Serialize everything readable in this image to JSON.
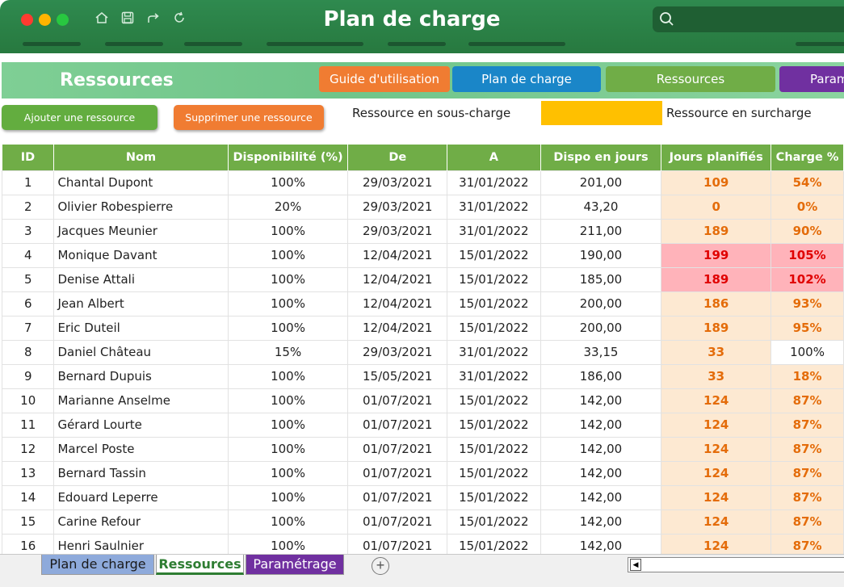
{
  "window": {
    "title": "Plan de charge",
    "colors": {
      "close": "#ff3b30",
      "minimize": "#ffb400",
      "maximize": "#28c840",
      "titlebar": "#2f8a4f"
    }
  },
  "toolbar": {
    "icons": [
      "home-icon",
      "save-icon",
      "share-icon",
      "refresh-icon",
      "search-icon"
    ]
  },
  "header": {
    "title": "Ressources",
    "nav": [
      {
        "label": "Guide d'utilisation",
        "color": "#f07c32"
      },
      {
        "label": "Plan de charge",
        "color": "#1a86c8"
      },
      {
        "label": "Ressources",
        "color": "#70ad47"
      },
      {
        "label": "Param",
        "color": "#7030a0"
      }
    ]
  },
  "actions": {
    "add_label": "Ajouter une ressource",
    "remove_label": "Supprimer une ressource",
    "legend_under": "Ressource en sous-charge",
    "legend_over": "Ressource en surcharge",
    "legend_over_color": "#ffc000"
  },
  "table": {
    "headers": [
      "ID",
      "Nom",
      "Disponibilité (%)",
      "De",
      "A",
      "Dispo en jours",
      "Jours planifiés",
      "Charge %"
    ],
    "rows": [
      {
        "id": "1",
        "nom": "Chantal Dupont",
        "dispo": "100%",
        "de": "29/03/2021",
        "a": "31/01/2022",
        "jours": "201,00",
        "planifies": "109",
        "charge": "54%",
        "status": "normal"
      },
      {
        "id": "2",
        "nom": "Olivier Robespierre",
        "dispo": "20%",
        "de": "29/03/2021",
        "a": "31/01/2022",
        "jours": "43,20",
        "planifies": "0",
        "charge": "0%",
        "status": "normal"
      },
      {
        "id": "3",
        "nom": "Jacques Meunier",
        "dispo": "100%",
        "de": "29/03/2021",
        "a": "31/01/2022",
        "jours": "211,00",
        "planifies": "189",
        "charge": "90%",
        "status": "normal"
      },
      {
        "id": "4",
        "nom": "Monique Davant",
        "dispo": "100%",
        "de": "12/04/2021",
        "a": "15/01/2022",
        "jours": "190,00",
        "planifies": "199",
        "charge": "105%",
        "status": "over"
      },
      {
        "id": "5",
        "nom": "Denise Attali",
        "dispo": "100%",
        "de": "12/04/2021",
        "a": "15/01/2022",
        "jours": "185,00",
        "planifies": "189",
        "charge": "102%",
        "status": "over"
      },
      {
        "id": "6",
        "nom": "Jean Albert",
        "dispo": "100%",
        "de": "12/04/2021",
        "a": "15/01/2022",
        "jours": "200,00",
        "planifies": "186",
        "charge": "93%",
        "status": "normal"
      },
      {
        "id": "7",
        "nom": "Eric Duteil",
        "dispo": "100%",
        "de": "12/04/2021",
        "a": "15/01/2022",
        "jours": "200,00",
        "planifies": "189",
        "charge": "95%",
        "status": "normal"
      },
      {
        "id": "8",
        "nom": "Daniel Château",
        "dispo": "15%",
        "de": "29/03/2021",
        "a": "31/01/2022",
        "jours": "33,15",
        "planifies": "33",
        "charge": "100%",
        "status": "full"
      },
      {
        "id": "9",
        "nom": "Bernard Dupuis",
        "dispo": "100%",
        "de": "15/05/2021",
        "a": "31/01/2022",
        "jours": "186,00",
        "planifies": "33",
        "charge": "18%",
        "status": "normal"
      },
      {
        "id": "10",
        "nom": "Marianne Anselme",
        "dispo": "100%",
        "de": "01/07/2021",
        "a": "15/01/2022",
        "jours": "142,00",
        "planifies": "124",
        "charge": "87%",
        "status": "normal"
      },
      {
        "id": "11",
        "nom": "Gérard Lourte",
        "dispo": "100%",
        "de": "01/07/2021",
        "a": "15/01/2022",
        "jours": "142,00",
        "planifies": "124",
        "charge": "87%",
        "status": "normal"
      },
      {
        "id": "12",
        "nom": "Marcel Poste",
        "dispo": "100%",
        "de": "01/07/2021",
        "a": "15/01/2022",
        "jours": "142,00",
        "planifies": "124",
        "charge": "87%",
        "status": "normal"
      },
      {
        "id": "13",
        "nom": "Bernard Tassin",
        "dispo": "100%",
        "de": "01/07/2021",
        "a": "15/01/2022",
        "jours": "142,00",
        "planifies": "124",
        "charge": "87%",
        "status": "normal"
      },
      {
        "id": "14",
        "nom": "Edouard Leperre",
        "dispo": "100%",
        "de": "01/07/2021",
        "a": "15/01/2022",
        "jours": "142,00",
        "planifies": "124",
        "charge": "87%",
        "status": "normal"
      },
      {
        "id": "15",
        "nom": "Carine Refour",
        "dispo": "100%",
        "de": "01/07/2021",
        "a": "15/01/2022",
        "jours": "142,00",
        "planifies": "124",
        "charge": "87%",
        "status": "normal"
      },
      {
        "id": "16",
        "nom": "Henri Saulnier",
        "dispo": "100%",
        "de": "01/07/2021",
        "a": "15/01/2022",
        "jours": "142,00",
        "planifies": "124",
        "charge": "87%",
        "status": "normal"
      }
    ]
  },
  "sheets": {
    "tabs": [
      {
        "label": "Plan de charge",
        "color": "#8eaadb"
      },
      {
        "label": "Ressources",
        "color": "#ffffff",
        "active": true
      },
      {
        "label": "Paramétrage",
        "color": "#7030a0"
      }
    ],
    "add_label": "+"
  }
}
